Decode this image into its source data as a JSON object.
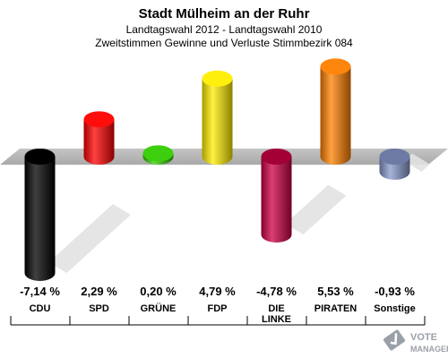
{
  "chart_data": {
    "type": "bar",
    "title": "Stadt Mülheim an der Ruhr",
    "subtitle_1": "Landtagswahl 2012 - Landtagswahl 2010",
    "subtitle_2": "Zweitstimmen Gewinne und Verluste Stimmbezirk 084",
    "categories": [
      {
        "line1": "CDU",
        "line2": ""
      },
      {
        "line1": "SPD",
        "line2": ""
      },
      {
        "line1": "GRÜNE",
        "line2": ""
      },
      {
        "line1": "FDP",
        "line2": ""
      },
      {
        "line1": "DIE",
        "line2": "LINKE"
      },
      {
        "line1": "PIRATEN",
        "line2": ""
      },
      {
        "line1": "Sonstige",
        "line2": ""
      }
    ],
    "values": [
      -7.14,
      2.29,
      0.2,
      4.79,
      -4.78,
      5.53,
      -0.93
    ],
    "value_labels": [
      "-7,14 %",
      "2,29 %",
      "0,20 %",
      "4,79 %",
      "-4,78 %",
      "5,53 %",
      "-0,93 %"
    ],
    "colors": [
      "#000000",
      "#ff0000",
      "#33cc00",
      "#ffee00",
      "#cc0044",
      "#ff8000",
      "#8899cc"
    ],
    "ylim": [
      -8,
      8
    ]
  },
  "logo": {
    "line1": "VOTE",
    "line2": "MANAGER"
  }
}
